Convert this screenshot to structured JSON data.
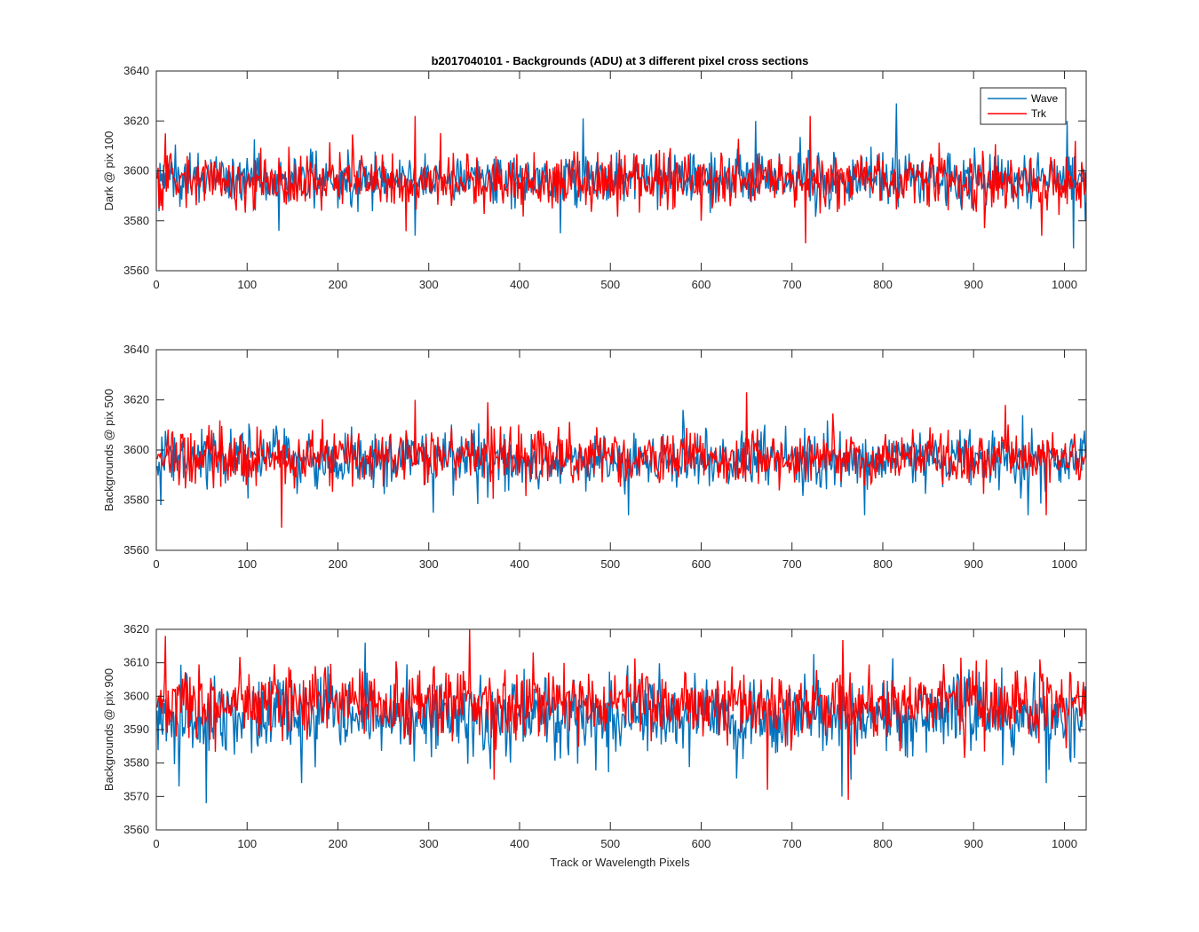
{
  "figure": {
    "title": "b2017040101 - Backgrounds (ADU) at 3 different pixel cross sections",
    "xlabel": "Track or Wavelength Pixels",
    "legend": {
      "location": "top-right",
      "entries": [
        "Wave",
        "Trk"
      ]
    },
    "colors": {
      "Wave": "#0072BD",
      "Trk": "#FF0000",
      "axes": "#262626"
    }
  },
  "chart_data": [
    {
      "type": "line",
      "title": "b2017040101 - Backgrounds (ADU) at 3 different pixel cross sections",
      "xlabel": "",
      "ylabel": "Dark @ pix 100",
      "xlim": [
        0,
        1024
      ],
      "ylim": [
        3560,
        3640
      ],
      "xticks": [
        0,
        100,
        200,
        300,
        400,
        500,
        600,
        700,
        800,
        900,
        1000
      ],
      "yticks": [
        3560,
        3580,
        3600,
        3620,
        3640
      ],
      "x": {
        "start": 1,
        "end": 1024,
        "step": 1
      },
      "series": [
        {
          "name": "Wave",
          "mean": 3597,
          "spread": 5.2,
          "min": 3568,
          "max": 3627,
          "notable_points": [
            [
              135,
              3576
            ],
            [
              285,
              3574
            ],
            [
              445,
              3575
            ],
            [
              470,
              3621
            ],
            [
              660,
              3620
            ],
            [
              815,
              3627
            ],
            [
              1003,
              3620
            ],
            [
              1010,
              3569
            ]
          ]
        },
        {
          "name": "Trk",
          "mean": 3596,
          "spread": 5.5,
          "min": 3571,
          "max": 3622,
          "notable_points": [
            [
              10,
              3615
            ],
            [
              285,
              3622
            ],
            [
              600,
              3580
            ],
            [
              715,
              3571
            ],
            [
              720,
              3622
            ],
            [
              975,
              3574
            ],
            [
              1012,
              3612
            ]
          ]
        }
      ],
      "legend": true,
      "grid": false
    },
    {
      "type": "line",
      "title": "",
      "xlabel": "",
      "ylabel": "Backgrounds @ pix 500",
      "xlim": [
        0,
        1024
      ],
      "ylim": [
        3560,
        3640
      ],
      "xticks": [
        0,
        100,
        200,
        300,
        400,
        500,
        600,
        700,
        800,
        900,
        1000
      ],
      "yticks": [
        3560,
        3580,
        3600,
        3620,
        3640
      ],
      "x": {
        "start": 1,
        "end": 1024,
        "step": 1
      },
      "series": [
        {
          "name": "Wave",
          "mean": 3596,
          "spread": 5.5,
          "min": 3574,
          "max": 3616,
          "notable_points": [
            [
              5,
              3578
            ],
            [
              305,
              3575
            ],
            [
              520,
              3574
            ],
            [
              580,
              3616
            ],
            [
              780,
              3574
            ],
            [
              960,
              3574
            ]
          ]
        },
        {
          "name": "Trk",
          "mean": 3597,
          "spread": 5.3,
          "min": 3569,
          "max": 3623,
          "notable_points": [
            [
              138,
              3569
            ],
            [
              285,
              3620
            ],
            [
              365,
              3619
            ],
            [
              650,
              3623
            ],
            [
              935,
              3618
            ],
            [
              980,
              3574
            ]
          ]
        }
      ],
      "legend": false,
      "grid": false
    },
    {
      "type": "line",
      "title": "",
      "xlabel": "Track or Wavelength Pixels",
      "ylabel": "Backgrounds @ pix 900",
      "xlim": [
        0,
        1024
      ],
      "ylim": [
        3560,
        3620
      ],
      "xticks": [
        0,
        100,
        200,
        300,
        400,
        500,
        600,
        700,
        800,
        900,
        1000
      ],
      "yticks": [
        3560,
        3570,
        3580,
        3590,
        3600,
        3610,
        3620
      ],
      "x": {
        "start": 1,
        "end": 1024,
        "step": 1
      },
      "series": [
        {
          "name": "Wave",
          "mean": 3594,
          "spread": 6.2,
          "min": 3568,
          "max": 3616,
          "notable_points": [
            [
              25,
              3573
            ],
            [
              55,
              3568
            ],
            [
              160,
              3574
            ],
            [
              230,
              3616
            ],
            [
              755,
              3570
            ],
            [
              765,
              3575
            ],
            [
              980,
              3574
            ]
          ]
        },
        {
          "name": "Trk",
          "mean": 3598,
          "spread": 5.4,
          "min": 3569,
          "max": 3620,
          "notable_points": [
            [
              10,
              3618
            ],
            [
              345,
              3620
            ],
            [
              372,
              3575
            ],
            [
              673,
              3572
            ],
            [
              762,
              3569
            ]
          ]
        }
      ],
      "legend": false,
      "grid": false
    }
  ]
}
